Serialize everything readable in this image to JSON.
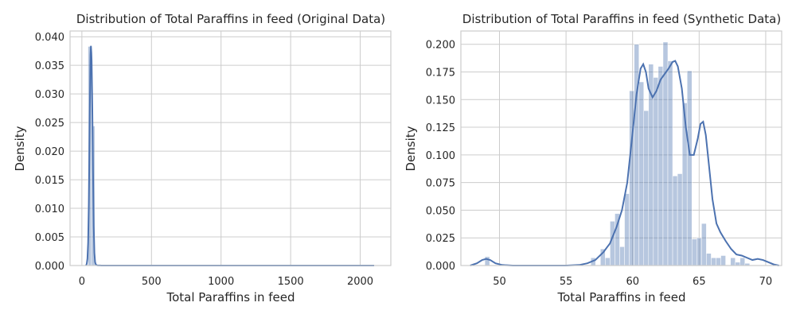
{
  "chart_data": [
    {
      "type": "bar",
      "title": "Distribution of Total Paraffins in feed (Original Data)",
      "xlabel": "Total Paraffins in feed",
      "ylabel": "Density",
      "xlim": [
        -85,
        2220
      ],
      "ylim": [
        0,
        0.041
      ],
      "xticks": [
        0,
        500,
        1000,
        1500,
        2000
      ],
      "xtick_labels": [
        "0",
        "500",
        "1000",
        "1500",
        "2000"
      ],
      "yticks": [
        0,
        0.005,
        0.01,
        0.015,
        0.02,
        0.025,
        0.03,
        0.035,
        0.04
      ],
      "ytick_labels": [
        "0.000",
        "0.005",
        "0.010",
        "0.015",
        "0.020",
        "0.025",
        "0.030",
        "0.035",
        "0.040"
      ],
      "grid": true,
      "histogram": {
        "bin_edges": [
          20,
          44,
          69,
          93
        ],
        "values": [
          0.0001,
          0.0383,
          0.0244
        ]
      },
      "kde": {
        "x": [
          30,
          35,
          40,
          45,
          50,
          55,
          60,
          62,
          65,
          68,
          70,
          75,
          80,
          85,
          90,
          95,
          100,
          105,
          110,
          120,
          130,
          140,
          160,
          200,
          300,
          500,
          800,
          1000,
          1300,
          1500,
          1800,
          2000,
          2100
        ],
        "y": [
          0,
          0.0003,
          0.0012,
          0.004,
          0.011,
          0.022,
          0.0335,
          0.0368,
          0.0384,
          0.0372,
          0.0358,
          0.0275,
          0.0165,
          0.007,
          0.0022,
          0.0006,
          0.0002,
          8e-05,
          4e-05,
          2e-05,
          1e-05,
          0,
          0,
          0,
          0,
          0,
          0,
          0,
          0,
          0,
          0,
          0,
          0
        ]
      }
    },
    {
      "type": "bar",
      "title": "Distribution of Total Paraffins in feed (Synthetic Data)",
      "xlabel": "Total Paraffins in feed",
      "ylabel": "Density",
      "xlim": [
        47.1,
        71.2
      ],
      "ylim": [
        0,
        0.212
      ],
      "xticks": [
        50,
        55,
        60,
        65,
        70
      ],
      "xtick_labels": [
        "50",
        "55",
        "60",
        "65",
        "70"
      ],
      "yticks": [
        0,
        0.025,
        0.05,
        0.075,
        0.1,
        0.125,
        0.15,
        0.175,
        0.2
      ],
      "ytick_labels": [
        "0.000",
        "0.025",
        "0.050",
        "0.075",
        "0.100",
        "0.125",
        "0.150",
        "0.175",
        "0.200"
      ],
      "grid": true,
      "histogram": {
        "bin_start": 48.9,
        "bin_width": 0.3618,
        "values": [
          0.008,
          0,
          0,
          0,
          0,
          0,
          0,
          0,
          0,
          0,
          0,
          0,
          0,
          0,
          0,
          0,
          0,
          0,
          0,
          0,
          0,
          0,
          0.007,
          0,
          0.015,
          0.007,
          0.04,
          0.047,
          0.017,
          0.065,
          0.158,
          0.2,
          0.166,
          0.14,
          0.182,
          0.17,
          0.18,
          0.202,
          0.185,
          0.081,
          0.083,
          0.147,
          0.176,
          0.024,
          0.025,
          0.038,
          0.011,
          0.007,
          0.007,
          0.009,
          0,
          0.007,
          0.003,
          0.007,
          0.002
        ]
      },
      "kde": {
        "x": [
          47.8,
          48.3,
          48.7,
          49.0,
          49.3,
          49.7,
          50.2,
          51,
          52,
          53,
          54,
          55,
          56,
          56.6,
          57.2,
          57.8,
          58.3,
          58.8,
          59.2,
          59.6,
          60.0,
          60.3,
          60.6,
          60.8,
          61.0,
          61.2,
          61.5,
          61.8,
          62.1,
          62.4,
          62.7,
          63.0,
          63.2,
          63.4,
          63.7,
          64.0,
          64.3,
          64.6,
          64.9,
          65.1,
          65.3,
          65.5,
          65.7,
          66.0,
          66.3,
          66.6,
          67.0,
          67.4,
          67.8,
          68.2,
          68.6,
          69.0,
          69.4,
          69.8,
          70.2,
          70.6,
          71.0
        ],
        "y": [
          0,
          0.002,
          0.005,
          0.006,
          0.005,
          0.002,
          0.0005,
          0,
          0,
          0,
          0,
          0,
          0.0005,
          0.002,
          0.005,
          0.012,
          0.02,
          0.035,
          0.05,
          0.075,
          0.12,
          0.155,
          0.178,
          0.182,
          0.175,
          0.16,
          0.152,
          0.158,
          0.168,
          0.173,
          0.178,
          0.184,
          0.185,
          0.18,
          0.16,
          0.125,
          0.1,
          0.1,
          0.115,
          0.128,
          0.13,
          0.118,
          0.095,
          0.06,
          0.038,
          0.03,
          0.022,
          0.015,
          0.01,
          0.009,
          0.007,
          0.005,
          0.006,
          0.005,
          0.003,
          0.001,
          0
        ]
      }
    }
  ]
}
